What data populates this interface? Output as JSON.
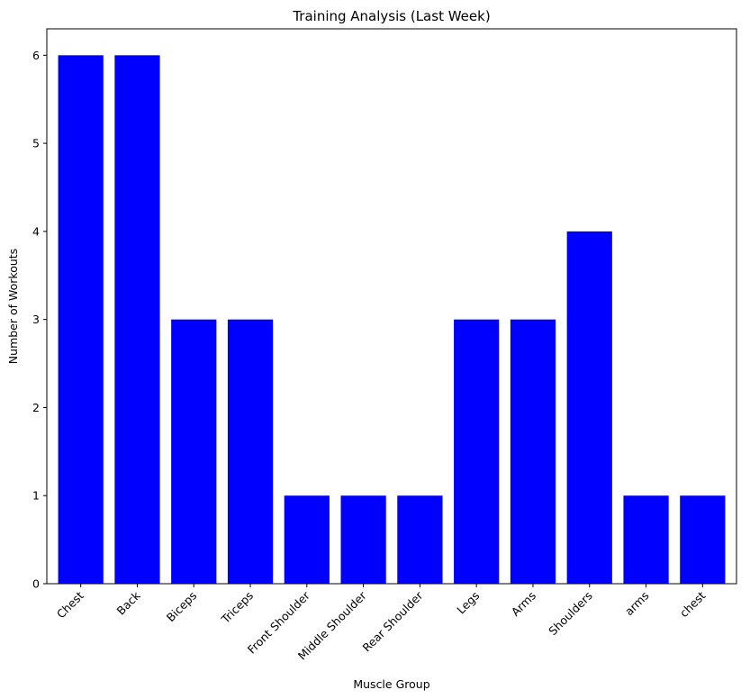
{
  "chart_data": {
    "type": "bar",
    "title": "Training Analysis (Last Week)",
    "xlabel": "Muscle Group",
    "ylabel": "Number of Workouts",
    "categories": [
      "Chest",
      "Back",
      "Biceps",
      "Triceps",
      "Front Shoulder",
      "Middle Shoulder",
      "Rear Shoulder",
      "Legs",
      "Arms",
      "Shoulders",
      "arms",
      "chest"
    ],
    "values": [
      6,
      6,
      3,
      3,
      1,
      1,
      1,
      3,
      3,
      4,
      1,
      1
    ],
    "yticks": [
      "0",
      "1",
      "2",
      "3",
      "4",
      "5",
      "6"
    ],
    "ylim": [
      0,
      6.3
    ],
    "bar_color": "#0000ff",
    "grid": false,
    "legend": false
  }
}
